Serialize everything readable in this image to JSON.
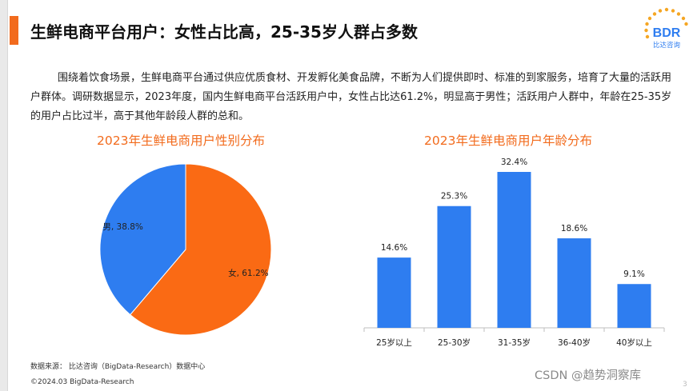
{
  "header": {
    "title": "生鲜电商平台用户：女性占比高，25-35岁人群占多数",
    "logo_text": "BDR",
    "logo_subtext": "比达咨询"
  },
  "body_text": "围绕着饮食场景，生鲜电商平台通过供应优质食材、开发孵化美食品牌，不断为人们提供即时、标准的到家服务，培育了大量的活跃用户群体。调研数据显示，2023年度，国内生鲜电商平台活跃用户中，女性占比达61.2%，明显高于男性；活跃用户人群中，年龄在25-35岁的用户占比过半，高于其他年龄段人群的总和。",
  "footer": {
    "source": "数据来源： 比达咨询（BigData-Research）数据中心",
    "copyright": "©2024.03 BigData-Research",
    "watermark": "CSDN @趋势洞察库",
    "page_number": "3"
  },
  "colors": {
    "accent": "#f26b1d",
    "female": "#fa6a14",
    "male": "#2e7df0",
    "bar": "#2e7df0"
  },
  "chart_data": [
    {
      "type": "pie",
      "title": "2023年生鲜电商用户性别分布",
      "slices": [
        {
          "label": "女",
          "value": 61.2,
          "display": "女, 61.2%"
        },
        {
          "label": "男",
          "value": 38.8,
          "display": "男, 38.8%"
        }
      ]
    },
    {
      "type": "bar",
      "title": "2023年生鲜电商用户年龄分布",
      "categories": [
        "25岁以上",
        "25-30岁",
        "31-35岁",
        "36-40岁",
        "40岁以上"
      ],
      "values": [
        14.6,
        25.3,
        32.4,
        18.6,
        9.1
      ],
      "value_labels": [
        "14.6%",
        "25.3%",
        "32.4%",
        "18.6%",
        "9.1%"
      ],
      "ylim": [
        0,
        35
      ],
      "grid": false,
      "y_axis_visible": false
    }
  ]
}
